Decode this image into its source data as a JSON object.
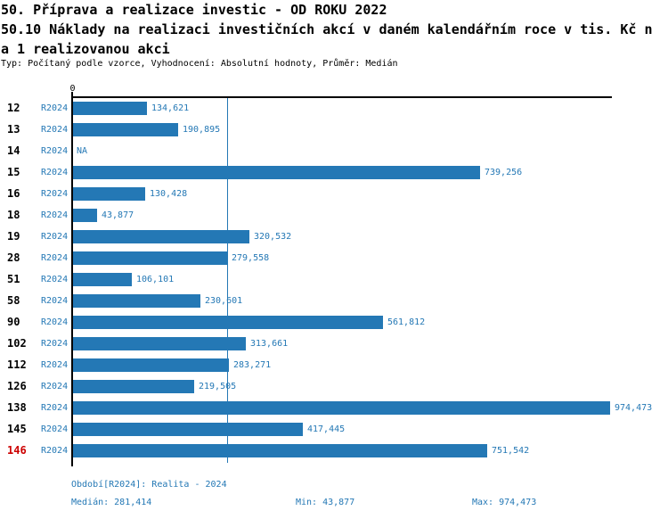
{
  "header": {
    "title": "50. Příprava a realizace investic - OD ROKU 2022",
    "subtitle_line1": "50.10 Náklady na realizaci investičních akcí v daném kalendářním roce v tis. Kč n",
    "subtitle_line2": "a 1 realizovanou akci",
    "meta": "Typ: Počítaný podle vzorce, Vyhodnocení: Absolutní hodnoty, Průměr: Medián"
  },
  "chart_data": {
    "type": "bar",
    "orientation": "horizontal",
    "title": "50.10 Náklady na realizaci investičních akcí v daném kalendářním roce v tis. Kč na 1 realizovanou akci",
    "categories": [
      "12",
      "13",
      "14",
      "15",
      "16",
      "18",
      "19",
      "28",
      "51",
      "58",
      "90",
      "102",
      "112",
      "126",
      "138",
      "145",
      "146"
    ],
    "series": [
      {
        "name": "R2024",
        "values": [
          134621,
          190895,
          null,
          739256,
          130428,
          43877,
          320532,
          279558,
          106101,
          230601,
          561812,
          313661,
          283271,
          219505,
          974473,
          417445,
          751542
        ]
      }
    ],
    "value_labels": [
      "134,621",
      "190,895",
      "NA",
      "739,256",
      "130,428",
      "43,877",
      "320,532",
      "279,558",
      "106,101",
      "230,601",
      "561,812",
      "313,661",
      "283,271",
      "219,505",
      "974,473",
      "417,445",
      "751,542"
    ],
    "xlim": [
      0,
      980000
    ],
    "axis_tick_labels": [
      "0"
    ],
    "median_value": 281414,
    "grid": false,
    "legend": "none",
    "bar_color": "#2478b5",
    "highlight_category": "146",
    "highlight_color": "#cc0000"
  },
  "footer": {
    "period": "Období[R2024]: Realita - 2024",
    "median": "Medián: 281,414",
    "min": "Min: 43,877",
    "max": "Max: 974,473"
  }
}
